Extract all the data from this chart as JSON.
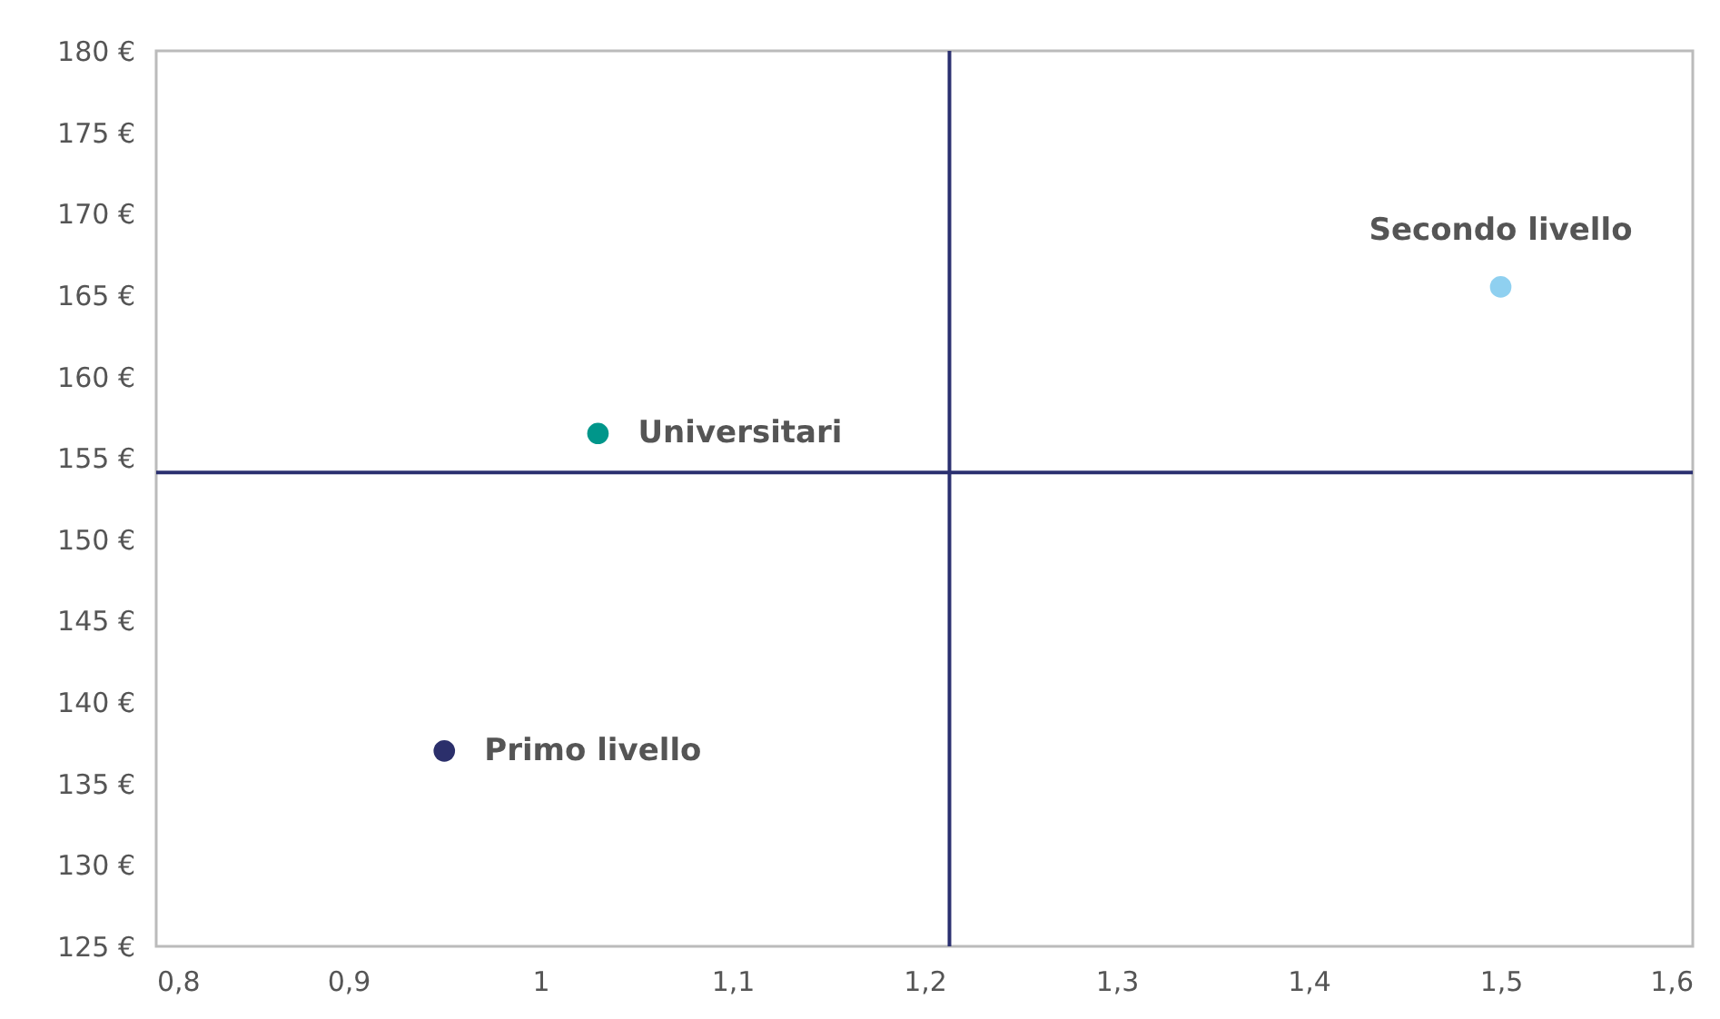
{
  "chart_data": {
    "type": "scatter",
    "grid": false,
    "marker": "circle",
    "xlim": [
      0.8,
      1.6
    ],
    "ylim": [
      125,
      180
    ],
    "xticks": [
      {
        "value": 0.8,
        "label": "0,8"
      },
      {
        "value": 0.9,
        "label": "0,9"
      },
      {
        "value": 1,
        "label": "1"
      },
      {
        "value": 1.1,
        "label": "1,1"
      },
      {
        "value": 1.2,
        "label": "1,2"
      },
      {
        "value": 1.3,
        "label": "1,3"
      },
      {
        "value": 1.4,
        "label": "1,4"
      },
      {
        "value": 1.5,
        "label": "1,5"
      },
      {
        "value": 1.6,
        "label": "1,6"
      }
    ],
    "yticks": [
      {
        "value": 125,
        "label": "125 €"
      },
      {
        "value": 130,
        "label": "130 €"
      },
      {
        "value": 135,
        "label": "135 €"
      },
      {
        "value": 140,
        "label": "140 €"
      },
      {
        "value": 145,
        "label": "145 €"
      },
      {
        "value": 150,
        "label": "150 €"
      },
      {
        "value": 155,
        "label": "155 €"
      },
      {
        "value": 160,
        "label": "160 €"
      },
      {
        "value": 165,
        "label": "165 €"
      },
      {
        "value": 170,
        "label": "170 €"
      },
      {
        "value": 175,
        "label": "175 €"
      },
      {
        "value": 180,
        "label": "180 €"
      }
    ],
    "series": [
      {
        "name": "Universitari",
        "color": "#00968a",
        "x": [
          1.03
        ],
        "values": [
          156.5
        ]
      },
      {
        "name": "Primo livello",
        "color": "#2b2f6b",
        "x": [
          0.95
        ],
        "values": [
          137
        ]
      },
      {
        "name": "Secondo livello",
        "color": "#8fd0f0",
        "x": [
          1.5
        ],
        "values": [
          165.5
        ]
      }
    ],
    "ref_lines": [
      {
        "axis": "x",
        "value": 1.213,
        "color": "#2b3070"
      },
      {
        "axis": "y",
        "value": 154.1,
        "color": "#2b3070"
      }
    ]
  }
}
